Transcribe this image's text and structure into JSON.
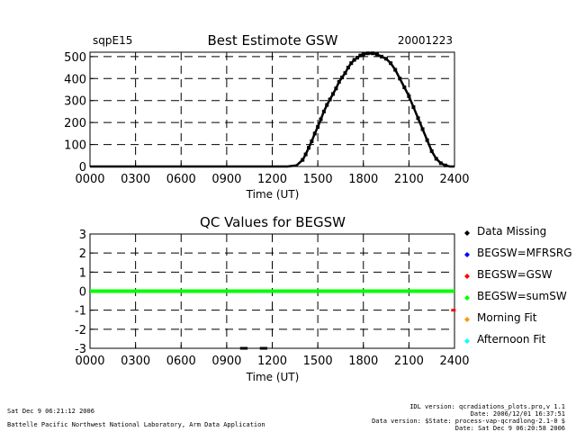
{
  "colors": {
    "background": "#ffffff",
    "axis": "#000000",
    "data_missing": "#000000",
    "mfrsrg": "#0000ff",
    "csw": "#ff0000",
    "sumsw": "#00ff00",
    "morning_fit": "#ff9900",
    "afternoon_fit": "#00ffff"
  },
  "chart_data": [
    {
      "type": "scatter",
      "title": "Best Estimote GSW",
      "subtitle_left": "sqpE15",
      "subtitle_right": "20001223",
      "xlabel": "Time (UT)",
      "ylabel": "",
      "xlim": [
        0,
        2400
      ],
      "ylim": [
        0,
        520
      ],
      "x_tick_labels": [
        "0000",
        "0300",
        "0600",
        "0900",
        "1200",
        "1500",
        "1800",
        "2100",
        "2400"
      ],
      "y_tick_labels": [
        "500",
        "400",
        "300",
        "200",
        "100",
        "0"
      ],
      "y_ticks": [
        500,
        400,
        300,
        200,
        100,
        0
      ],
      "grid": "dashed",
      "series": [
        {
          "color": "#000000",
          "x": [
            0,
            600,
            1200,
            1300,
            1360,
            1400,
            1420,
            1440,
            1460,
            1480,
            1500,
            1520,
            1540,
            1560,
            1580,
            1600,
            1620,
            1640,
            1660,
            1680,
            1700,
            1720,
            1740,
            1760,
            1780,
            1800,
            1830,
            1860,
            1890,
            1920,
            1950,
            1980,
            2010,
            2040,
            2070,
            2100,
            2130,
            2160,
            2190,
            2220,
            2250,
            2280,
            2310,
            2340,
            2370,
            2400
          ],
          "y": [
            0,
            0,
            0,
            0,
            5,
            30,
            55,
            85,
            115,
            150,
            180,
            215,
            250,
            280,
            305,
            330,
            355,
            385,
            405,
            425,
            450,
            470,
            485,
            495,
            505,
            510,
            515,
            515,
            510,
            500,
            490,
            470,
            440,
            400,
            360,
            320,
            270,
            220,
            170,
            120,
            70,
            35,
            15,
            5,
            0,
            0
          ]
        }
      ]
    },
    {
      "type": "scatter",
      "title": "QC Values for BEGSW",
      "xlabel": "Time (UT)",
      "ylabel": "",
      "xlim": [
        0,
        2400
      ],
      "ylim": [
        -3,
        3
      ],
      "x_tick_labels": [
        "0000",
        "0300",
        "0600",
        "0900",
        "1200",
        "1500",
        "1800",
        "2100",
        "2400"
      ],
      "y_tick_labels": [
        "3",
        "2",
        "1",
        "0",
        "-1",
        "-2",
        "-3"
      ],
      "y_ticks": [
        3,
        2,
        1,
        0,
        -1,
        -2,
        -3
      ],
      "grid": "dashed",
      "legend_position": "right",
      "legend": [
        {
          "label": "Data Missing",
          "color": "#000000"
        },
        {
          "label": "BEGSW=MFRSRG",
          "color": "#0000ff"
        },
        {
          "label": "BEGSW=GSW",
          "color": "#ff0000"
        },
        {
          "label": "BEGSW=sumSW",
          "color": "#00ff00"
        },
        {
          "label": "Morning Fit",
          "color": "#ff9900"
        },
        {
          "label": "Afternoon Fit",
          "color": "#00ffff"
        }
      ],
      "series": [
        {
          "name": "BEGSW=sumSW",
          "color": "#00ff00",
          "x_start": 0,
          "x_end": 2400,
          "value": 0
        },
        {
          "name": "BEGSW=GSW",
          "color": "#ff0000",
          "x": [
            2390
          ],
          "y": [
            -1
          ]
        },
        {
          "name": "Data Missing",
          "color": "#000000",
          "x": [
            1000,
            1020,
            1130,
            1150
          ],
          "y": [
            -3,
            -3,
            -3,
            -3
          ]
        }
      ]
    }
  ],
  "footer": {
    "left_line1": "Sat Dec  9 06:21:12 2006",
    "left_line2": "Battelle Pacific Northwest National Laboratory, Arm Data Application",
    "right_line1": "IDL version: qcradiations_plots.pro,v 1.1",
    "right_line2": "Date: 2006/12/01 16:37:51",
    "right_line3": "Data version: $State: process-vap-qcradlong-2.1-0 $",
    "right_line4": "Date: Sat Dec  9 06:20:58 2006"
  }
}
